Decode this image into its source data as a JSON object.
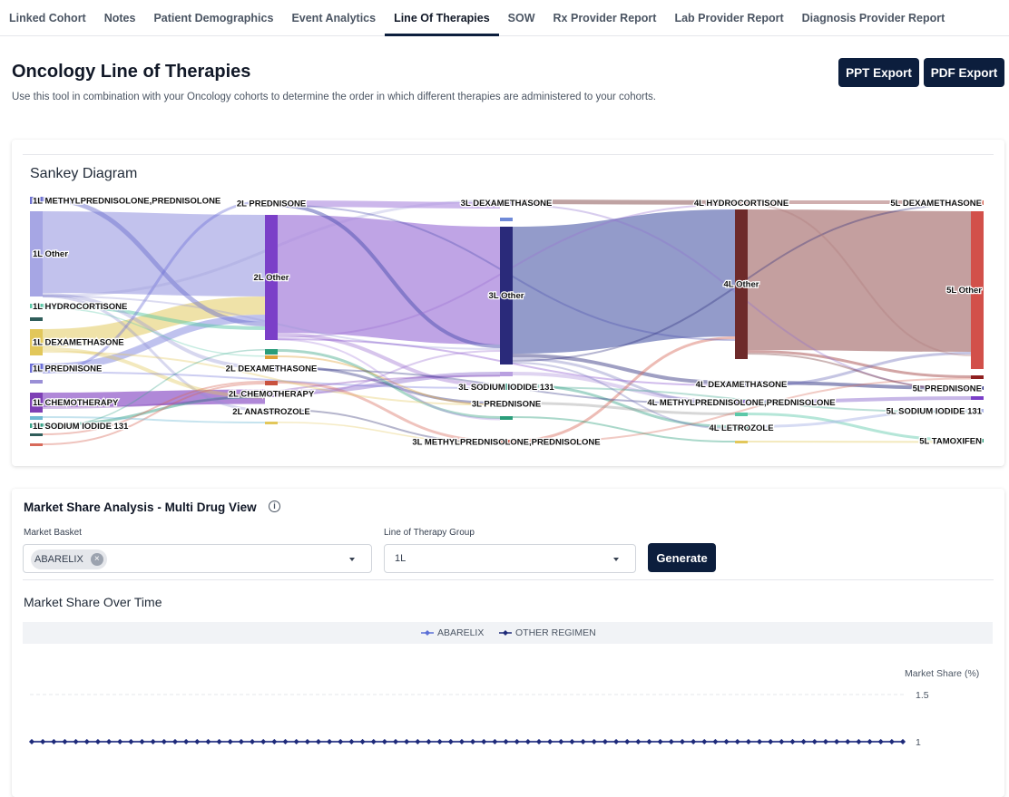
{
  "tabs": [
    {
      "label": "Linked Cohort",
      "active": false
    },
    {
      "label": "Notes",
      "active": false
    },
    {
      "label": "Patient Demographics",
      "active": false
    },
    {
      "label": "Event Analytics",
      "active": false
    },
    {
      "label": "Line Of Therapies",
      "active": true
    },
    {
      "label": "SOW",
      "active": false
    },
    {
      "label": "Rx Provider Report",
      "active": false
    },
    {
      "label": "Lab Provider Report",
      "active": false
    },
    {
      "label": "Diagnosis Provider Report",
      "active": false
    }
  ],
  "header": {
    "title": "Oncology Line of Therapies",
    "description": "Use this tool in combination with your Oncology cohorts to determine the order in which different therapies are administered to your cohorts.",
    "ppt_export": "PPT Export",
    "pdf_export": "PDF Export"
  },
  "sankey": {
    "title": "Sankey Diagram",
    "columns": [
      {
        "nodes": [
          {
            "label": "1L METHYLPREDNISOLONE,PREDNISOLONE",
            "color": "#6f73d0"
          },
          {
            "label": "1L Other",
            "color": "#a6a6e4"
          },
          {
            "label": "1L HYDROCORTISONE",
            "color": "#5cc8a8"
          },
          {
            "label": "",
            "color": "#2f5d5a"
          },
          {
            "label": "1L DEXAMETHASONE",
            "color": "#e2c75a"
          },
          {
            "label": "",
            "color": "#aeb8e8"
          },
          {
            "label": "1L PREDNISONE",
            "color": "#6c6fd8"
          },
          {
            "label": "",
            "color": "#9a8fd6"
          },
          {
            "label": "1L CHEMOTHERAPY",
            "color": "#7e3fb5"
          },
          {
            "label": "",
            "color": "#6fb9d4"
          },
          {
            "label": "1L SODIUM IODIDE 131",
            "color": "#3aa38a"
          },
          {
            "label": "",
            "color": "#2f5d5a"
          },
          {
            "label": "",
            "color": "#d86a5a"
          }
        ]
      },
      {
        "nodes": [
          {
            "label": "2L PREDNISONE",
            "color": "#4c4fb0"
          },
          {
            "label": "2L Other",
            "color": "#7b3fc8"
          },
          {
            "label": "",
            "color": "#2a9d7a"
          },
          {
            "label": "",
            "color": "#e0a23a"
          },
          {
            "label": "2L DEXAMETHASONE",
            "color": "#2c2f80"
          },
          {
            "label": "",
            "color": "#c9523f"
          },
          {
            "label": "2L CHEMOTHERAPY",
            "color": "#9b6fd0"
          },
          {
            "label": "2L ANASTROZOLE",
            "color": "#2a2a6e"
          },
          {
            "label": "",
            "color": "#e2c75a"
          }
        ]
      },
      {
        "nodes": [
          {
            "label": "3L DEXAMETHASONE",
            "color": "#8f6fcf"
          },
          {
            "label": "",
            "color": "#6f8ad8"
          },
          {
            "label": "3L Other",
            "color": "#2a2a7a"
          },
          {
            "label": "",
            "color": "#b9a0e0"
          },
          {
            "label": "3L SODIUM IODIDE 131",
            "color": "#3aa38a"
          },
          {
            "label": "3L PREDNISONE",
            "color": "#9c9c9c"
          },
          {
            "label": "",
            "color": "#2a9d7a"
          },
          {
            "label": "3L METHYLPREDNISOLONE,PREDNISOLONE",
            "color": "#d86a5a"
          }
        ]
      },
      {
        "nodes": [
          {
            "label": "4L HYDROCORTISONE",
            "color": "#b07a7a"
          },
          {
            "label": "4L Other",
            "color": "#6e2a2a"
          },
          {
            "label": "4L DEXAMETHASONE",
            "color": "#2a2a7a"
          },
          {
            "label": "",
            "color": "#5cc8a8"
          },
          {
            "label": "4L METHYLPREDNISOLONE,PREDNISOLONE",
            "color": "#8f6fcf"
          },
          {
            "label": "4L LETROZOLE",
            "color": "#3aa38a"
          },
          {
            "label": "",
            "color": "#e2c75a"
          }
        ]
      },
      {
        "nodes": [
          {
            "label": "5L DEXAMETHASONE",
            "color": "#d86a5a"
          },
          {
            "label": "5L Other",
            "color": "#d2504a"
          },
          {
            "label": "",
            "color": "#8f1f1f"
          },
          {
            "label": "5L PREDNISONE",
            "color": "#2c2f80"
          },
          {
            "label": "",
            "color": "#7b3fc8"
          },
          {
            "label": "5L SODIUM IODIDE 131",
            "color": "#aeb8e8"
          },
          {
            "label": "5L TAMOXIFEN",
            "color": "#2a9d7a"
          }
        ]
      }
    ]
  },
  "market_share": {
    "title": "Market Share Analysis - Multi Drug View",
    "info_icon": "info-icon",
    "basket_label": "Market Basket",
    "basket_chip": "ABARELIX",
    "lot_label": "Line of Therapy Group",
    "lot_value": "1L",
    "generate": "Generate",
    "chart_title": "Market Share Over Time"
  },
  "chart_data": {
    "type": "line",
    "title": "Market Share Over Time",
    "ylabel": "Market Share (%)",
    "y_ticks": [
      "1.5",
      "1"
    ],
    "legend_position": "top",
    "series": [
      {
        "name": "ABARELIX",
        "color": "#5b6fd6",
        "values": [
          1,
          1,
          1,
          1,
          1,
          1,
          1,
          1,
          1,
          1,
          1,
          1,
          1,
          1,
          1,
          1,
          1,
          1,
          1,
          1,
          1,
          1,
          1,
          1,
          1,
          1,
          1,
          1,
          1,
          1,
          1,
          1,
          1,
          1,
          1,
          1,
          1,
          1,
          1,
          1,
          1,
          1,
          1,
          1,
          1,
          1,
          1,
          1,
          1,
          1,
          1,
          1,
          1,
          1,
          1,
          1,
          1,
          1,
          1,
          1,
          1,
          1,
          1,
          1,
          1,
          1,
          1,
          1,
          1,
          1,
          1,
          1,
          1,
          1,
          1,
          1,
          1,
          1,
          1,
          1
        ]
      },
      {
        "name": "OTHER REGIMEN",
        "color": "#1e2a78",
        "values": [
          1,
          1,
          1,
          1,
          1,
          1,
          1,
          1,
          1,
          1,
          1,
          1,
          1,
          1,
          1,
          1,
          1,
          1,
          1,
          1,
          1,
          1,
          1,
          1,
          1,
          1,
          1,
          1,
          1,
          1,
          1,
          1,
          1,
          1,
          1,
          1,
          1,
          1,
          1,
          1,
          1,
          1,
          1,
          1,
          1,
          1,
          1,
          1,
          1,
          1,
          1,
          1,
          1,
          1,
          1,
          1,
          1,
          1,
          1,
          1,
          1,
          1,
          1,
          1,
          1,
          1,
          1,
          1,
          1,
          1,
          1,
          1,
          1,
          1,
          1,
          1,
          1,
          1,
          1,
          1
        ]
      }
    ]
  }
}
